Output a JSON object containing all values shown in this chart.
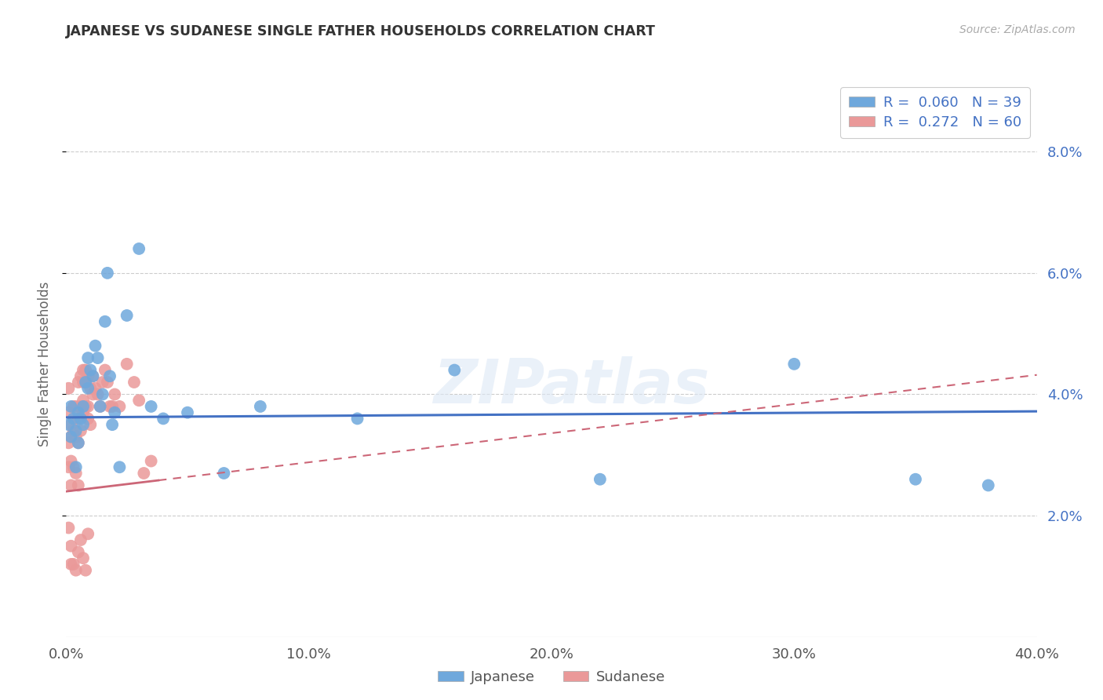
{
  "title": "JAPANESE VS SUDANESE SINGLE FATHER HOUSEHOLDS CORRELATION CHART",
  "source": "Source: ZipAtlas.com",
  "ylabel": "Single Father Households",
  "xlim": [
    0.0,
    0.4
  ],
  "ylim": [
    0.0,
    0.09
  ],
  "xticks": [
    0.0,
    0.1,
    0.2,
    0.3,
    0.4
  ],
  "xtick_labels": [
    "0.0%",
    "10.0%",
    "20.0%",
    "30.0%",
    "40.0%"
  ],
  "yticks": [
    0.02,
    0.04,
    0.06,
    0.08
  ],
  "ytick_labels": [
    "2.0%",
    "4.0%",
    "6.0%",
    "8.0%"
  ],
  "japanese_color": "#6fa8dc",
  "sudanese_color": "#ea9999",
  "japanese_R": 0.06,
  "japanese_N": 39,
  "sudanese_R": 0.272,
  "sudanese_N": 60,
  "watermark": "ZIPatlas",
  "japanese_x": [
    0.001,
    0.002,
    0.002,
    0.003,
    0.004,
    0.004,
    0.005,
    0.005,
    0.006,
    0.007,
    0.007,
    0.008,
    0.009,
    0.009,
    0.01,
    0.011,
    0.012,
    0.013,
    0.014,
    0.015,
    0.016,
    0.017,
    0.018,
    0.019,
    0.02,
    0.022,
    0.025,
    0.03,
    0.035,
    0.04,
    0.05,
    0.065,
    0.08,
    0.12,
    0.16,
    0.22,
    0.3,
    0.35,
    0.38
  ],
  "japanese_y": [
    0.035,
    0.038,
    0.033,
    0.036,
    0.034,
    0.028,
    0.037,
    0.032,
    0.036,
    0.038,
    0.035,
    0.042,
    0.046,
    0.041,
    0.044,
    0.043,
    0.048,
    0.046,
    0.038,
    0.04,
    0.052,
    0.06,
    0.043,
    0.035,
    0.037,
    0.028,
    0.053,
    0.064,
    0.038,
    0.036,
    0.037,
    0.027,
    0.038,
    0.036,
    0.044,
    0.026,
    0.045,
    0.026,
    0.025
  ],
  "sudanese_x": [
    0.001,
    0.001,
    0.001,
    0.001,
    0.002,
    0.002,
    0.002,
    0.002,
    0.003,
    0.003,
    0.003,
    0.004,
    0.004,
    0.004,
    0.005,
    0.005,
    0.005,
    0.005,
    0.006,
    0.006,
    0.006,
    0.007,
    0.007,
    0.007,
    0.007,
    0.008,
    0.008,
    0.008,
    0.009,
    0.009,
    0.009,
    0.01,
    0.01,
    0.011,
    0.011,
    0.012,
    0.013,
    0.014,
    0.015,
    0.016,
    0.017,
    0.018,
    0.019,
    0.02,
    0.022,
    0.025,
    0.028,
    0.03,
    0.032,
    0.035,
    0.001,
    0.002,
    0.002,
    0.003,
    0.004,
    0.005,
    0.006,
    0.007,
    0.008,
    0.009
  ],
  "sudanese_y": [
    0.037,
    0.041,
    0.032,
    0.028,
    0.033,
    0.029,
    0.035,
    0.025,
    0.034,
    0.038,
    0.028,
    0.033,
    0.038,
    0.027,
    0.032,
    0.036,
    0.025,
    0.042,
    0.034,
    0.038,
    0.043,
    0.037,
    0.039,
    0.042,
    0.044,
    0.038,
    0.042,
    0.044,
    0.036,
    0.038,
    0.043,
    0.041,
    0.035,
    0.04,
    0.043,
    0.041,
    0.04,
    0.038,
    0.042,
    0.044,
    0.042,
    0.038,
    0.038,
    0.04,
    0.038,
    0.045,
    0.042,
    0.039,
    0.027,
    0.029,
    0.018,
    0.015,
    0.012,
    0.012,
    0.011,
    0.014,
    0.016,
    0.013,
    0.011,
    0.017
  ],
  "japanese_line_intercept": 0.0362,
  "japanese_line_slope": 0.0025,
  "sudanese_line_intercept": 0.024,
  "sudanese_line_slope": 0.048
}
